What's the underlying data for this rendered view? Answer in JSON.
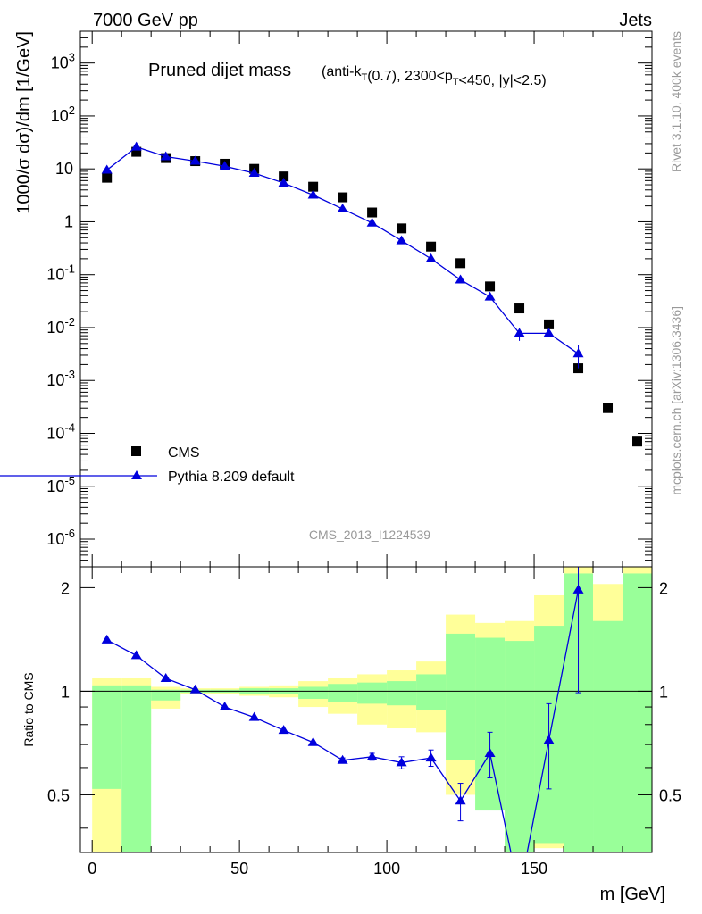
{
  "header": {
    "left": "7000 GeV pp",
    "right": "Jets"
  },
  "chart_data": [
    {
      "type": "scatter",
      "title": "Pruned dijet mass",
      "subtitle": "(anti-kT(0.7), 2300<pT<450, |y|<2.5)",
      "ylabel": "1000/σ dσ)/dm [1/GeV]",
      "xlabel": "m [GeV]",
      "yscale": "log",
      "ylim": [
        3e-07,
        4000
      ],
      "xlim": [
        -4,
        190
      ],
      "yticks": [
        "10^-6",
        "10^-5",
        "10^-4",
        "10^-3",
        "10^-2",
        "10^-1",
        "1",
        "10",
        "10^2",
        "10^3"
      ],
      "legend_position": "bottom-left",
      "watermark": "CMS_2013_I1224539",
      "side_labels": [
        "Rivet 3.1.10,  400k events",
        "mcplots.cern.ch [arXiv:1306.3436]"
      ],
      "series": [
        {
          "name": "CMS",
          "marker": "square",
          "color": "#000000",
          "x": [
            5,
            15,
            25,
            35,
            45,
            55,
            65,
            75,
            85,
            95,
            105,
            115,
            125,
            135,
            145,
            155,
            165,
            175,
            185
          ],
          "y": [
            6.8,
            21,
            16,
            14,
            12.5,
            10,
            7.2,
            4.6,
            2.9,
            1.5,
            0.75,
            0.34,
            0.165,
            0.06,
            0.023,
            0.0115,
            0.0017,
            0.0003,
            7e-05
          ]
        },
        {
          "name": "Pythia 8.209 default",
          "marker": "triangle",
          "color": "#0000dd",
          "x": [
            5,
            15,
            25,
            35,
            45,
            55,
            65,
            75,
            85,
            95,
            105,
            115,
            125,
            135,
            145,
            155,
            165
          ],
          "y": [
            9.5,
            26,
            17,
            14,
            11.2,
            8.3,
            5.4,
            3.2,
            1.75,
            0.95,
            0.44,
            0.2,
            0.08,
            0.038,
            0.0078,
            0.0078,
            0.0032
          ],
          "y_err": [
            0,
            0,
            0,
            0,
            0,
            0,
            0,
            0,
            0,
            0,
            0,
            0,
            0,
            0,
            0.0022,
            0.0012,
            0.0015
          ]
        }
      ]
    },
    {
      "type": "line",
      "ylabel": "Ratio to CMS",
      "xlabel": "m [GeV]",
      "xlim": [
        -4,
        190
      ],
      "ylim": [
        0.34,
        2.3
      ],
      "xticks": [
        0,
        50,
        100,
        150
      ],
      "yticks": [
        0.5,
        1,
        2
      ],
      "reference_line": 1,
      "bands": {
        "bin_edges": [
          0,
          10,
          20,
          30,
          40,
          50,
          60,
          70,
          80,
          90,
          100,
          110,
          120,
          130,
          140,
          150,
          160,
          170,
          180,
          190
        ],
        "yellow_low": [
          0,
          0.7,
          0.89,
          0.98,
          0.98,
          0.97,
          0.96,
          0.9,
          0.86,
          0.8,
          0.78,
          0.76,
          0.5,
          0.5,
          0.65,
          0.35,
          0.45,
          0.46,
          0.3
        ],
        "yellow_high": [
          1.09,
          1.09,
          1.03,
          1.02,
          1.02,
          1.03,
          1.04,
          1.07,
          1.09,
          1.12,
          1.15,
          1.22,
          1.67,
          1.58,
          1.6,
          1.9,
          2.3,
          2.05,
          2.3
        ],
        "green_low": [
          0.52,
          0.3,
          0.94,
          0.99,
          0.99,
          0.98,
          0.98,
          0.95,
          0.93,
          0.92,
          0.91,
          0.88,
          0.63,
          0.45,
          0.2,
          0.36,
          0.2,
          0.3,
          0.2
        ],
        "green_high": [
          1.04,
          1.04,
          1.01,
          1.01,
          1.01,
          1.02,
          1.02,
          1.03,
          1.05,
          1.06,
          1.07,
          1.12,
          1.47,
          1.43,
          1.4,
          1.55,
          2.2,
          1.6,
          2.2
        ],
        "yellow_color": "#ffff99",
        "green_color": "#99ff99"
      },
      "series": [
        {
          "name": "Pythia 8.209 default",
          "color": "#0000dd",
          "x": [
            5,
            15,
            25,
            35,
            45,
            55,
            65,
            75,
            85,
            95,
            105,
            115,
            125,
            135,
            145,
            155,
            165
          ],
          "y": [
            1.41,
            1.27,
            1.09,
            1.01,
            0.9,
            0.84,
            0.77,
            0.71,
            0.63,
            0.645,
            0.62,
            0.64,
            0.48,
            0.66,
            0.26,
            0.72,
            1.97
          ],
          "y_err": [
            0,
            0,
            0,
            0,
            0,
            0,
            0,
            0,
            0.01,
            0.015,
            0.025,
            0.035,
            0.06,
            0.1,
            0,
            0.2,
            0.98
          ]
        }
      ]
    }
  ]
}
